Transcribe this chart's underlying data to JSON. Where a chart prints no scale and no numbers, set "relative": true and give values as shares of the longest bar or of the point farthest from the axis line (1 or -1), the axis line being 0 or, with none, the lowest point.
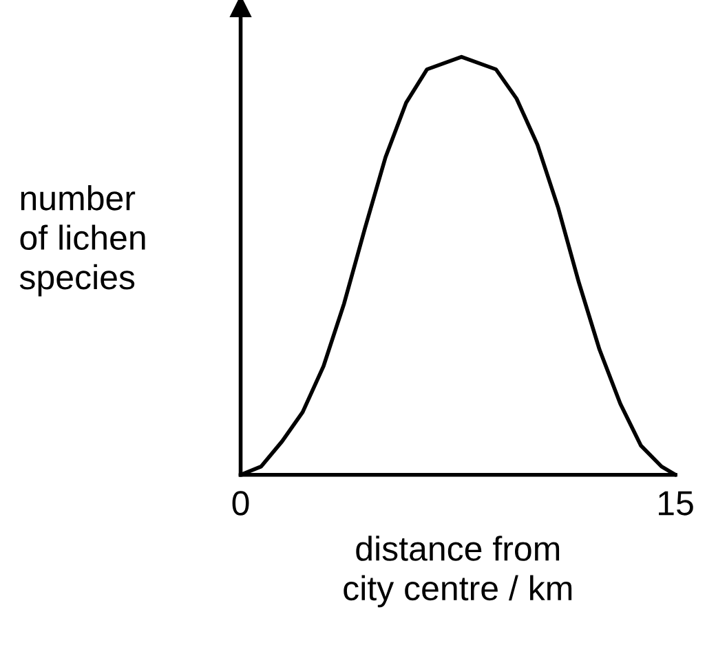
{
  "chart_data": {
    "type": "line",
    "relative": true,
    "xlabel": "distance from\ncity centre / km",
    "ylabel": "number\nof lichen\nspecies",
    "xlim": [
      0,
      15
    ],
    "xticks": [
      0,
      15
    ],
    "tick_labels": "x",
    "grid": false,
    "legend": false,
    "series": [
      {
        "color": "#000000",
        "x": [
          0,
          0.71,
          1.43,
          2.14,
          2.86,
          3.57,
          4.29,
          5.0,
          5.71,
          6.43,
          7.62,
          8.81,
          9.52,
          10.24,
          10.95,
          11.67,
          12.38,
          13.1,
          13.81,
          14.52,
          15
        ],
        "values": [
          0,
          0.02,
          0.08,
          0.15,
          0.26,
          0.41,
          0.59,
          0.76,
          0.89,
          0.97,
          1.0,
          0.97,
          0.9,
          0.79,
          0.64,
          0.46,
          0.3,
          0.17,
          0.07,
          0.02,
          0
        ]
      }
    ]
  }
}
